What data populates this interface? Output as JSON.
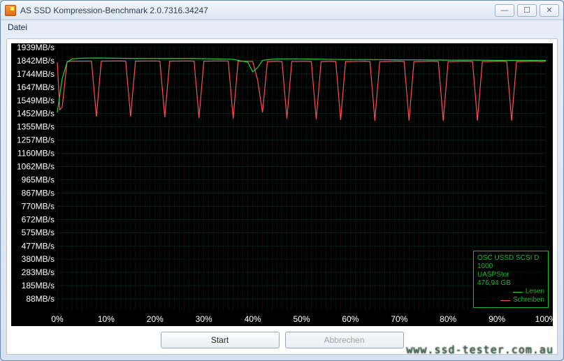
{
  "window": {
    "title": "AS SSD Kompression-Benchmark 2.0.7316.34247",
    "menu": {
      "datei": "Datei"
    }
  },
  "buttons": {
    "start": "Start",
    "abort": "Abbrechen"
  },
  "legend": {
    "device": "OSC USSD SCSI D",
    "model": "1000",
    "driver": "UASPStor",
    "capacity": "476,94 GB",
    "read_label": "Lesen",
    "write_label": "Schreiben",
    "read_color": "#25d03a",
    "write_color": "#ff4d55"
  },
  "watermark": "www.ssd-tester.com.au",
  "chart": {
    "type": "line",
    "background": "#000000",
    "grid_color": "#0d4032",
    "axis_text_color": "#ffffff",
    "x_label_suffix": "%",
    "y_label_suffix": "MB/s",
    "xlim": [
      0,
      100
    ],
    "ylim": [
      0,
      1939
    ],
    "x_ticks": [
      0,
      10,
      20,
      30,
      40,
      50,
      60,
      70,
      80,
      90,
      100
    ],
    "y_ticks": [
      88,
      185,
      283,
      380,
      477,
      575,
      672,
      770,
      867,
      965,
      1062,
      1160,
      1257,
      1355,
      1452,
      1549,
      1647,
      1744,
      1842,
      1939
    ],
    "x_grid_minor_count": 10,
    "read": {
      "color": "#25d03a",
      "line_width": 1.2,
      "points": [
        [
          0,
          1460
        ],
        [
          1,
          1710
        ],
        [
          2,
          1830
        ],
        [
          3,
          1855
        ],
        [
          5,
          1860
        ],
        [
          8,
          1862
        ],
        [
          12,
          1860
        ],
        [
          16,
          1858
        ],
        [
          20,
          1858
        ],
        [
          24,
          1858
        ],
        [
          28,
          1858
        ],
        [
          32,
          1855
        ],
        [
          36,
          1852
        ],
        [
          39,
          1830
        ],
        [
          40,
          1760
        ],
        [
          41,
          1790
        ],
        [
          42,
          1845
        ],
        [
          45,
          1855
        ],
        [
          50,
          1855
        ],
        [
          55,
          1852
        ],
        [
          60,
          1850
        ],
        [
          65,
          1850
        ],
        [
          70,
          1848
        ],
        [
          75,
          1848
        ],
        [
          80,
          1846
        ],
        [
          85,
          1846
        ],
        [
          90,
          1844
        ],
        [
          95,
          1844
        ],
        [
          100,
          1844
        ]
      ]
    },
    "write": {
      "color": "#ff4d55",
      "line_width": 1.2,
      "points": [
        [
          0,
          1830
        ],
        [
          0.5,
          1480
        ],
        [
          1,
          1500
        ],
        [
          2,
          1835
        ],
        [
          3,
          1838
        ],
        [
          6,
          1838
        ],
        [
          7,
          1838
        ],
        [
          8,
          1430
        ],
        [
          9,
          1838
        ],
        [
          13,
          1840
        ],
        [
          14,
          1838
        ],
        [
          15,
          1430
        ],
        [
          16,
          1838
        ],
        [
          20,
          1840
        ],
        [
          21,
          1838
        ],
        [
          22,
          1425
        ],
        [
          23,
          1838
        ],
        [
          27,
          1840
        ],
        [
          28,
          1838
        ],
        [
          29,
          1420
        ],
        [
          30,
          1838
        ],
        [
          34,
          1840
        ],
        [
          35,
          1838
        ],
        [
          36,
          1415
        ],
        [
          37,
          1838
        ],
        [
          40,
          1836
        ],
        [
          41,
          1700
        ],
        [
          42,
          1460
        ],
        [
          43,
          1835
        ],
        [
          45,
          1838
        ],
        [
          46,
          1835
        ],
        [
          47,
          1415
        ],
        [
          48,
          1836
        ],
        [
          51,
          1838
        ],
        [
          52,
          1835
        ],
        [
          53,
          1410
        ],
        [
          54,
          1835
        ],
        [
          56,
          1838
        ],
        [
          57,
          1835
        ],
        [
          58,
          1405
        ],
        [
          59,
          1835
        ],
        [
          63,
          1838
        ],
        [
          64,
          1835
        ],
        [
          65,
          1400
        ],
        [
          66,
          1835
        ],
        [
          70,
          1838
        ],
        [
          71,
          1835
        ],
        [
          72,
          1400
        ],
        [
          73,
          1835
        ],
        [
          77,
          1838
        ],
        [
          78,
          1835
        ],
        [
          79,
          1400
        ],
        [
          80,
          1835
        ],
        [
          84,
          1838
        ],
        [
          85,
          1835
        ],
        [
          86,
          1400
        ],
        [
          87,
          1835
        ],
        [
          91,
          1838
        ],
        [
          92,
          1835
        ],
        [
          93,
          1400
        ],
        [
          94,
          1835
        ],
        [
          98,
          1838
        ],
        [
          99,
          1835
        ],
        [
          100,
          1838
        ]
      ]
    }
  }
}
